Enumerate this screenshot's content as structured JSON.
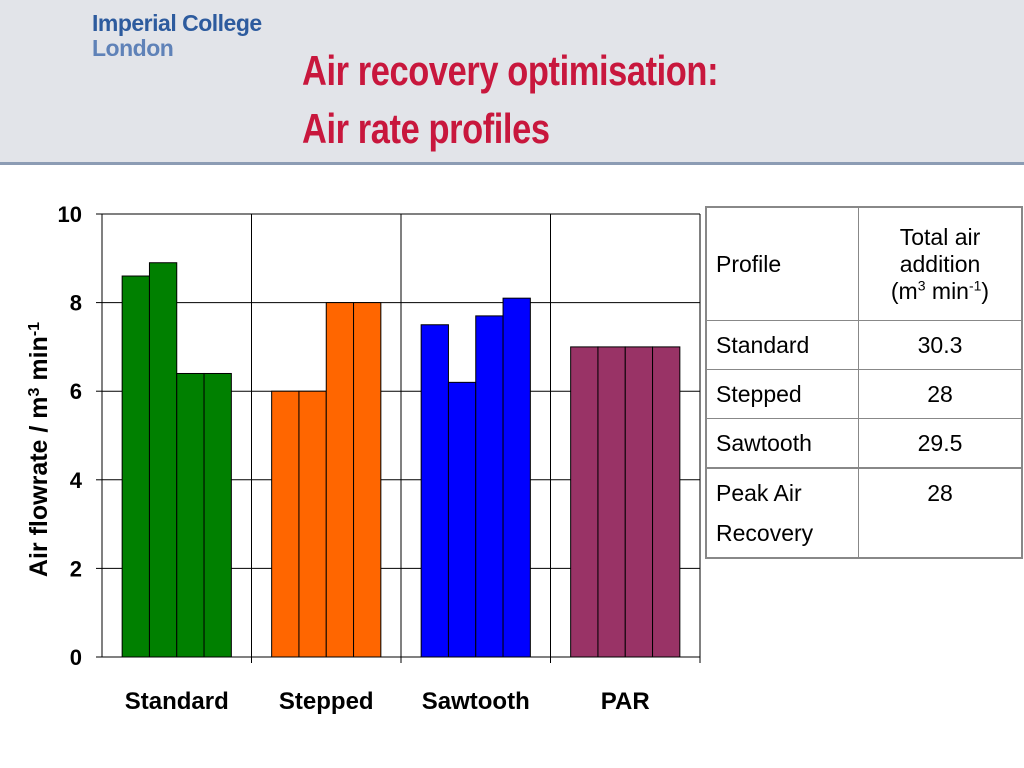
{
  "logo": {
    "line1": "Imperial College",
    "line2": "London"
  },
  "title": {
    "line1": "Air recovery optimisation:",
    "line2": "Air rate profiles"
  },
  "chart_data": {
    "type": "bar",
    "ylabel": "Air flowrate / m3 min-1",
    "ylim": [
      0,
      10
    ],
    "yticks": [
      0,
      2,
      4,
      6,
      8,
      10
    ],
    "grid": true,
    "groups": [
      {
        "name": "Standard",
        "color": "#008000",
        "values": [
          8.6,
          8.9,
          6.4,
          6.4
        ]
      },
      {
        "name": "Stepped",
        "color": "#ff6600",
        "values": [
          6.0,
          6.0,
          8.0,
          8.0
        ]
      },
      {
        "name": "Sawtooth",
        "color": "#0000ff",
        "values": [
          7.5,
          6.2,
          7.7,
          8.1
        ]
      },
      {
        "name": "PAR",
        "color": "#993366",
        "values": [
          7.0,
          7.0,
          7.0,
          7.0
        ]
      }
    ]
  },
  "table": {
    "header": {
      "profile": "Profile",
      "total_line1": "Total air",
      "total_line2": "addition",
      "unit": "(m3 min-1)"
    },
    "rows": [
      {
        "profile": "Standard",
        "value": "30.3"
      },
      {
        "profile": "Stepped",
        "value": "28"
      },
      {
        "profile": "Sawtooth",
        "value": "29.5"
      },
      {
        "profile": "Peak Air Recovery",
        "value": "28"
      }
    ]
  }
}
